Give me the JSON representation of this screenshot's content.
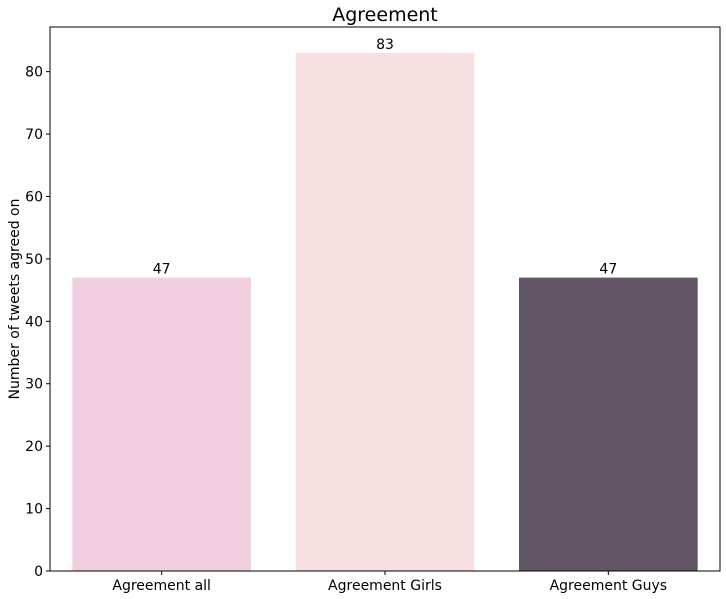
{
  "chart_data": {
    "type": "bar",
    "title": "Agreement",
    "xlabel": "",
    "ylabel": "Number of tweets agreed on",
    "categories": [
      "Agreement all",
      "Agreement Girls",
      "Agreement Guys"
    ],
    "values": [
      47,
      83,
      47
    ],
    "data_labels": [
      "47",
      "83",
      "47"
    ],
    "colors": [
      "#f2cfe0",
      "#f8e0e0",
      "#625566"
    ],
    "ylim": [
      0,
      87.15
    ],
    "yticks": [
      0,
      10,
      20,
      30,
      40,
      50,
      60,
      70,
      80
    ],
    "grid": false,
    "legend": "none"
  }
}
